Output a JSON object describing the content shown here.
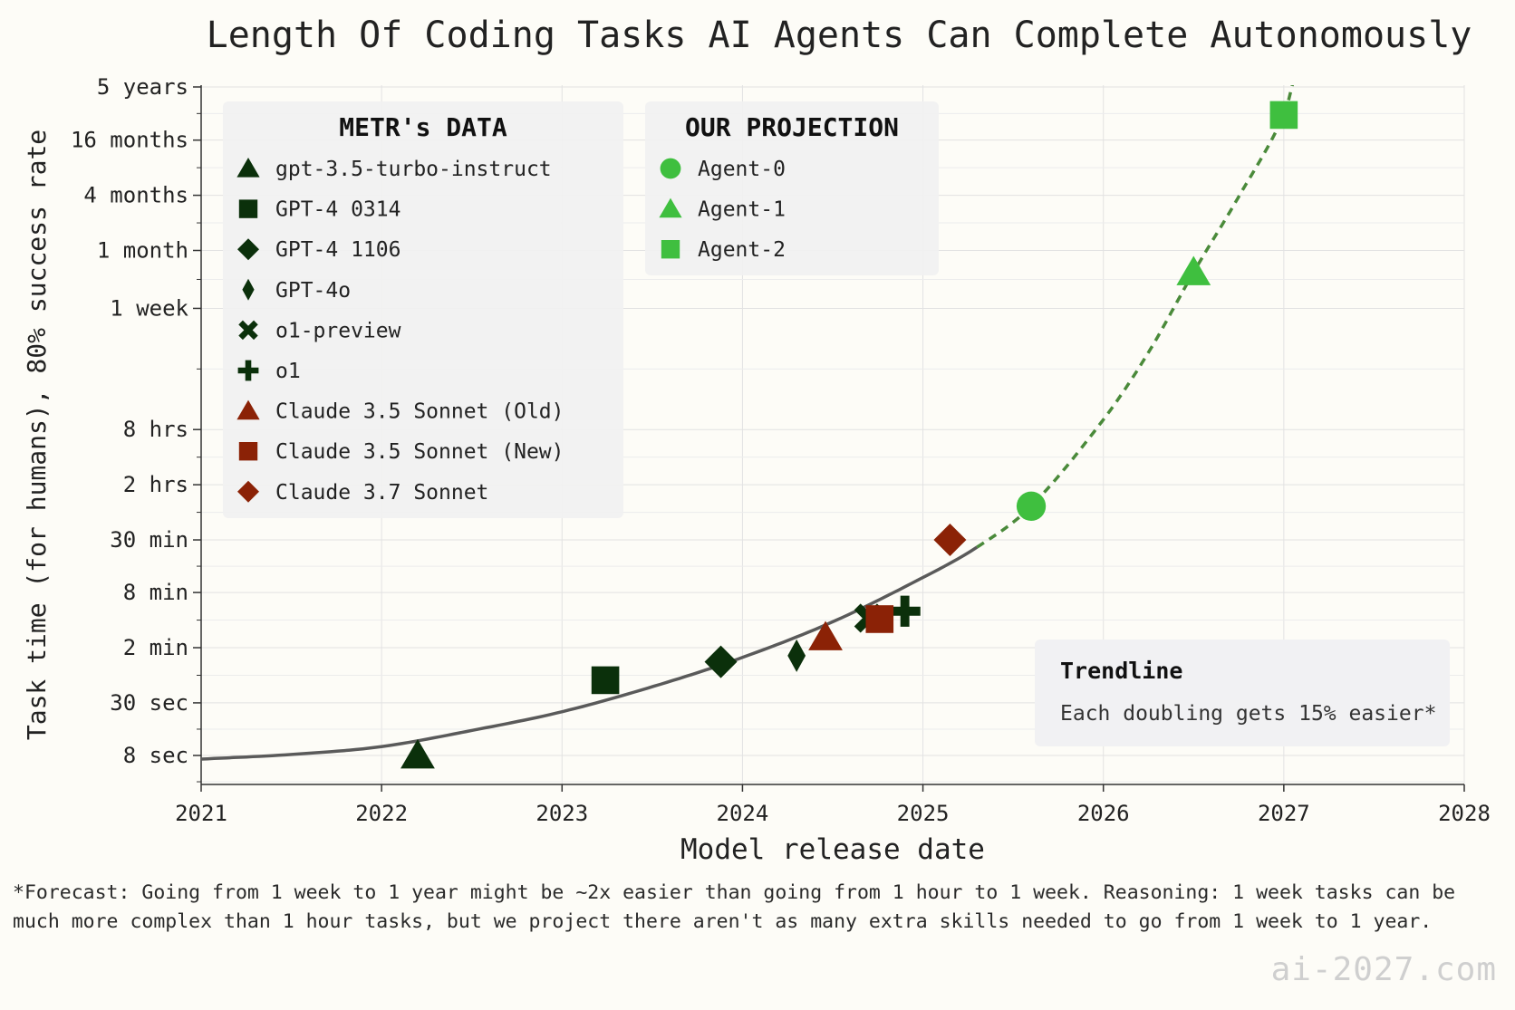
{
  "chart_data": {
    "type": "scatter",
    "title": "Length Of Coding Tasks AI Agents Can Complete Autonomously",
    "xlabel": "Model release date",
    "ylabel": "Task time (for humans), 80% success rate",
    "x_ticks": [
      "2021",
      "2022",
      "2023",
      "2024",
      "2025",
      "2026",
      "2027",
      "2028"
    ],
    "xlim": [
      2021,
      2028
    ],
    "y_scale": "log",
    "y_ticks": [
      {
        "label": "8 sec",
        "seconds": 8
      },
      {
        "label": "30 sec",
        "seconds": 30
      },
      {
        "label": "2 min",
        "seconds": 120
      },
      {
        "label": "8 min",
        "seconds": 480
      },
      {
        "label": "30 min",
        "seconds": 1800
      },
      {
        "label": "2 hrs",
        "seconds": 7200
      },
      {
        "label": "8 hrs",
        "seconds": 28800
      },
      {
        "label": "1 week",
        "seconds": 604800
      },
      {
        "label": "1 month",
        "seconds": 2592000
      },
      {
        "label": "4 months",
        "seconds": 10368000
      },
      {
        "label": "16 months",
        "seconds": 41472000
      },
      {
        "label": "5 years",
        "seconds": 157680000
      }
    ],
    "grid": true,
    "legends": [
      {
        "title": "METR's DATA",
        "placement": "top-left",
        "entries": [
          {
            "name": "gpt-3.5-turbo-instruct",
            "marker": "triangle",
            "color": "#0b300b"
          },
          {
            "name": "GPT-4 0314",
            "marker": "square",
            "color": "#0b300b"
          },
          {
            "name": "GPT-4 1106",
            "marker": "diamond",
            "color": "#0b300b"
          },
          {
            "name": "GPT-4o",
            "marker": "thin-diamond",
            "color": "#0b300b"
          },
          {
            "name": "o1-preview",
            "marker": "x",
            "color": "#0b300b"
          },
          {
            "name": "o1",
            "marker": "plus",
            "color": "#0b300b"
          },
          {
            "name": "Claude 3.5 Sonnet (Old)",
            "marker": "triangle",
            "color": "#8b2206"
          },
          {
            "name": "Claude 3.5 Sonnet (New)",
            "marker": "square",
            "color": "#8b2206"
          },
          {
            "name": "Claude 3.7 Sonnet",
            "marker": "diamond",
            "color": "#8b2206"
          }
        ]
      },
      {
        "title": "OUR PROJECTION",
        "placement": "top-center",
        "entries": [
          {
            "name": "Agent-0",
            "marker": "circle",
            "color": "#3fbf3f"
          },
          {
            "name": "Agent-1",
            "marker": "triangle",
            "color": "#3fbf3f"
          },
          {
            "name": "Agent-2",
            "marker": "square",
            "color": "#3fbf3f"
          }
        ]
      }
    ],
    "points": [
      {
        "name": "gpt-3.5-turbo-instruct",
        "marker": "triangle",
        "color": "#0b300b",
        "x": 2022.2,
        "seconds": 8
      },
      {
        "name": "GPT-4 0314",
        "marker": "square",
        "color": "#0b300b",
        "x": 2023.24,
        "seconds": 53
      },
      {
        "name": "GPT-4 1106",
        "marker": "diamond",
        "color": "#0b300b",
        "x": 2023.88,
        "seconds": 84
      },
      {
        "name": "GPT-4o",
        "marker": "thin-diamond",
        "color": "#0b300b",
        "x": 2024.3,
        "seconds": 98
      },
      {
        "name": "o1-preview",
        "marker": "x",
        "color": "#0b300b",
        "x": 2024.7,
        "seconds": 252
      },
      {
        "name": "o1",
        "marker": "plus",
        "color": "#0b300b",
        "x": 2024.9,
        "seconds": 300
      },
      {
        "name": "Claude 3.5 Sonnet (Old)",
        "marker": "triangle",
        "color": "#8b2206",
        "x": 2024.46,
        "seconds": 156
      },
      {
        "name": "Claude 3.5 Sonnet (New)",
        "marker": "square",
        "color": "#8b2206",
        "x": 2024.76,
        "seconds": 246
      },
      {
        "name": "Claude 3.7 Sonnet",
        "marker": "diamond",
        "color": "#8b2206",
        "x": 2025.15,
        "seconds": 1800
      },
      {
        "name": "Agent-0",
        "marker": "circle",
        "color": "#3fbf3f",
        "x": 2025.6,
        "seconds": 4200
      },
      {
        "name": "Agent-1",
        "marker": "triangle",
        "color": "#3fbf3f",
        "x": 2026.5,
        "seconds": 1500000
      },
      {
        "name": "Agent-2",
        "marker": "square",
        "color": "#3fbf3f",
        "x": 2027.0,
        "seconds": 78000000
      }
    ],
    "trendline": {
      "color": "#5a5a5a",
      "projection_color": "#4a8a3a",
      "solid_until": 2025.3,
      "points": [
        {
          "x": 2021.0,
          "seconds": 7.3
        },
        {
          "x": 2021.5,
          "seconds": 8.2
        },
        {
          "x": 2022.0,
          "seconds": 10
        },
        {
          "x": 2022.5,
          "seconds": 15
        },
        {
          "x": 2023.0,
          "seconds": 24
        },
        {
          "x": 2023.5,
          "seconds": 45
        },
        {
          "x": 2024.0,
          "seconds": 94
        },
        {
          "x": 2024.5,
          "seconds": 230
        },
        {
          "x": 2025.0,
          "seconds": 700
        },
        {
          "x": 2025.3,
          "seconds": 1500
        },
        {
          "x": 2025.6,
          "seconds": 4200
        },
        {
          "x": 2026.0,
          "seconds": 37000
        },
        {
          "x": 2026.25,
          "seconds": 200000
        },
        {
          "x": 2026.5,
          "seconds": 1500000
        },
        {
          "x": 2026.75,
          "seconds": 10000000
        },
        {
          "x": 2027.0,
          "seconds": 78000000
        },
        {
          "x": 2027.07,
          "seconds": 250000000
        }
      ]
    },
    "annotation": {
      "title": "Trendline",
      "text": "Each doubling gets 15% easier*",
      "placement": "bottom-right"
    }
  },
  "footnote": "*Forecast: Going from 1 week to 1 year might be ~2x easier than going from 1 hour to 1 week. Reasoning: 1 week tasks can be much more complex than 1 hour tasks, but we project there aren't as many extra skills needed to go from 1 week to 1 year.",
  "watermark": "ai-2027.com"
}
